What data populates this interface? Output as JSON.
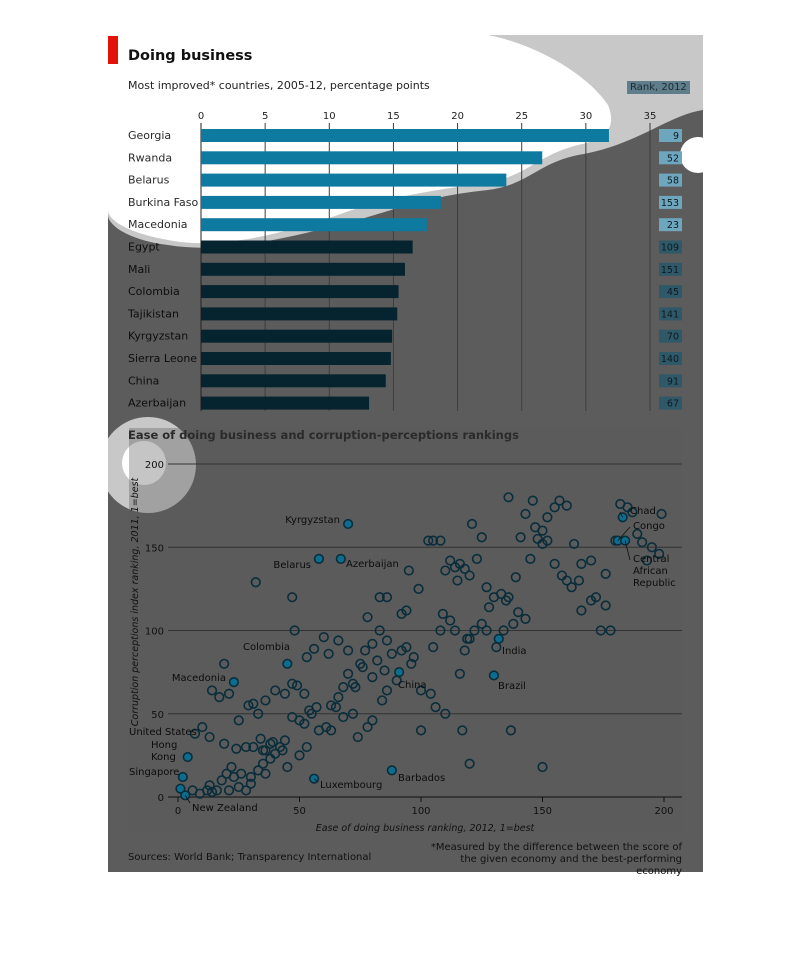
{
  "header": {
    "title": "Doing business",
    "subtitle": "Most improved* countries, 2005-12, percentage points",
    "rank_label": "Rank, 2012"
  },
  "footer": {
    "sources": "Sources: World Bank; Transparency International",
    "footnote": "*Measured by the difference between the score of the given economy and the best-performing economy"
  },
  "colors": {
    "highlight_bar": "#0f7aa0",
    "dark_bar": "#06242f",
    "overlay_dark": "#5a5a5a",
    "overlay_light": "#c6c6c6",
    "marker_stroke": "#0a2d3b",
    "marker_highlight_fill": "#0e6d8e"
  },
  "chart_data": [
    {
      "type": "bar",
      "orientation": "horizontal",
      "title": "Doing business",
      "subtitle": "Most improved* countries, 2005-12, percentage points",
      "categories": [
        "Georgia",
        "Rwanda",
        "Belarus",
        "Burkina Faso",
        "Macedonia",
        "Egypt",
        "Mali",
        "Colombia",
        "Tajikistan",
        "Kyrgyzstan",
        "Sierra Leone",
        "China",
        "Azerbaijan"
      ],
      "values": [
        31.8,
        26.6,
        23.8,
        18.7,
        17.6,
        16.5,
        15.9,
        15.4,
        15.3,
        14.9,
        14.8,
        14.4,
        13.1
      ],
      "rank_2012": [
        "9",
        "52",
        "58",
        "153",
        "23",
        "109",
        "151",
        "45",
        "141",
        "70",
        "140",
        "91",
        "67"
      ],
      "xlim": [
        0,
        35
      ],
      "xticks": [
        "0",
        "5",
        "10",
        "15",
        "20",
        "25",
        "30",
        "35"
      ],
      "grid": true
    },
    {
      "type": "scatter",
      "title": "Ease of doing business and corruption-perceptions rankings",
      "xlabel": "Ease of doing business ranking, 2012, 1=best",
      "ylabel": "Corruption perceptions index ranking, 2011, 1=best",
      "xlim": [
        0,
        205
      ],
      "ylim": [
        0,
        205
      ],
      "xticks": [
        "0",
        "50",
        "100",
        "150",
        "200"
      ],
      "yticks": [
        "0",
        "50",
        "100",
        "150",
        "200"
      ],
      "grid": true,
      "labelled_points": [
        {
          "label": "Kyrgyzstan",
          "x": 70,
          "y": 164
        },
        {
          "label": "Belarus",
          "x": 58,
          "y": 143
        },
        {
          "label": "Azerbaijan",
          "x": 67,
          "y": 143
        },
        {
          "label": "Chad",
          "x": 183,
          "y": 168
        },
        {
          "label": "Congo",
          "x": 181,
          "y": 154
        },
        {
          "label": "Central African Republic",
          "x": 184,
          "y": 154
        },
        {
          "label": "Colombia",
          "x": 45,
          "y": 80
        },
        {
          "label": "Macedonia",
          "x": 23,
          "y": 69
        },
        {
          "label": "India",
          "x": 132,
          "y": 95
        },
        {
          "label": "China",
          "x": 91,
          "y": 75
        },
        {
          "label": "Brazil",
          "x": 130,
          "y": 73
        },
        {
          "label": "United States",
          "x": 4,
          "y": 24
        },
        {
          "label": "Hong Kong",
          "x": 2,
          "y": 12
        },
        {
          "label": "Singapore",
          "x": 1,
          "y": 5
        },
        {
          "label": "New Zealand",
          "x": 3,
          "y": 1
        },
        {
          "label": "Luxembourg",
          "x": 56,
          "y": 11
        },
        {
          "label": "Barbados",
          "x": 88,
          "y": 16
        }
      ],
      "points": [
        [
          9,
          2
        ],
        [
          6,
          4
        ],
        [
          12,
          4
        ],
        [
          13,
          7
        ],
        [
          14,
          3
        ],
        [
          18,
          10
        ],
        [
          20,
          14
        ],
        [
          23,
          12
        ],
        [
          26,
          14
        ],
        [
          30,
          12
        ],
        [
          25,
          6
        ],
        [
          28,
          4
        ],
        [
          21,
          4
        ],
        [
          16,
          4
        ],
        [
          22,
          18
        ],
        [
          30,
          8
        ],
        [
          33,
          16
        ],
        [
          35,
          20
        ],
        [
          36,
          14
        ],
        [
          38,
          23
        ],
        [
          40,
          26
        ],
        [
          36,
          28
        ],
        [
          38,
          32
        ],
        [
          42,
          30
        ],
        [
          44,
          34
        ],
        [
          47,
          48
        ],
        [
          50,
          46
        ],
        [
          52,
          44
        ],
        [
          55,
          50
        ],
        [
          19,
          32
        ],
        [
          24,
          29
        ],
        [
          28,
          30
        ],
        [
          31,
          30
        ],
        [
          34,
          35
        ],
        [
          35,
          28
        ],
        [
          39,
          33
        ],
        [
          43,
          28
        ],
        [
          45,
          18
        ],
        [
          50,
          25
        ],
        [
          53,
          30
        ],
        [
          58,
          40
        ],
        [
          61,
          42
        ],
        [
          63,
          55
        ],
        [
          66,
          60
        ],
        [
          68,
          66
        ],
        [
          70,
          74
        ],
        [
          73,
          66
        ],
        [
          72,
          68
        ],
        [
          75,
          80
        ],
        [
          77,
          88
        ],
        [
          80,
          92
        ],
        [
          83,
          100
        ],
        [
          86,
          94
        ],
        [
          88,
          86
        ],
        [
          92,
          88
        ],
        [
          94,
          90
        ],
        [
          96,
          80
        ],
        [
          90,
          70
        ],
        [
          86,
          64
        ],
        [
          84,
          58
        ],
        [
          80,
          46
        ],
        [
          78,
          42
        ],
        [
          74,
          36
        ],
        [
          72,
          50
        ],
        [
          68,
          48
        ],
        [
          65,
          54
        ],
        [
          63,
          40
        ],
        [
          57,
          54
        ],
        [
          54,
          52
        ],
        [
          52,
          62
        ],
        [
          49,
          67
        ],
        [
          47,
          68
        ],
        [
          44,
          62
        ],
        [
          40,
          64
        ],
        [
          36,
          58
        ],
        [
          33,
          50
        ],
        [
          31,
          56
        ],
        [
          29,
          55
        ],
        [
          25,
          46
        ],
        [
          21,
          62
        ],
        [
          17,
          60
        ],
        [
          19,
          80
        ],
        [
          14,
          64
        ],
        [
          10,
          42
        ],
        [
          7,
          38
        ],
        [
          13,
          36
        ],
        [
          48,
          100
        ],
        [
          47,
          120
        ],
        [
          32,
          129
        ],
        [
          78,
          108
        ],
        [
          83,
          120
        ],
        [
          86,
          120
        ],
        [
          92,
          110
        ],
        [
          94,
          112
        ],
        [
          95,
          136
        ],
        [
          99,
          125
        ],
        [
          103,
          154
        ],
        [
          105,
          154
        ],
        [
          108,
          154
        ],
        [
          110,
          136
        ],
        [
          112,
          142
        ],
        [
          114,
          138
        ],
        [
          116,
          140
        ],
        [
          118,
          137
        ],
        [
          120,
          133
        ],
        [
          115,
          130
        ],
        [
          109,
          110
        ],
        [
          105,
          90
        ],
        [
          106,
          54
        ],
        [
          110,
          50
        ],
        [
          116,
          74
        ],
        [
          119,
          95
        ],
        [
          121,
          164
        ],
        [
          123,
          143
        ],
        [
          125,
          156
        ],
        [
          127,
          126
        ],
        [
          130,
          120
        ],
        [
          133,
          122
        ],
        [
          128,
          114
        ],
        [
          135,
          118
        ],
        [
          138,
          104
        ],
        [
          140,
          111
        ],
        [
          143,
          107
        ],
        [
          145,
          143
        ],
        [
          147,
          162
        ],
        [
          150,
          152
        ],
        [
          152,
          154
        ],
        [
          155,
          140
        ],
        [
          158,
          133
        ],
        [
          160,
          130
        ],
        [
          162,
          126
        ],
        [
          165,
          130
        ],
        [
          166,
          112
        ],
        [
          170,
          118
        ],
        [
          172,
          120
        ],
        [
          174,
          100
        ],
        [
          176,
          115
        ],
        [
          178,
          100
        ],
        [
          180,
          154
        ],
        [
          182,
          176
        ],
        [
          185,
          174
        ],
        [
          187,
          171
        ],
        [
          189,
          158
        ],
        [
          191,
          153
        ],
        [
          193,
          142
        ],
        [
          195,
          150
        ],
        [
          198,
          146
        ],
        [
          199,
          170
        ],
        [
          176,
          134
        ],
        [
          170,
          142
        ],
        [
          166,
          140
        ],
        [
          163,
          152
        ],
        [
          160,
          175
        ],
        [
          157,
          178
        ],
        [
          155,
          174
        ],
        [
          152,
          168
        ],
        [
          150,
          160
        ],
        [
          148,
          155
        ],
        [
          146,
          178
        ],
        [
          141,
          156
        ],
        [
          139,
          132
        ],
        [
          136,
          120
        ],
        [
          134,
          100
        ],
        [
          131,
          90
        ],
        [
          127,
          100
        ],
        [
          125,
          104
        ],
        [
          122,
          100
        ],
        [
          120,
          95
        ],
        [
          118,
          88
        ],
        [
          114,
          100
        ],
        [
          112,
          106
        ],
        [
          108,
          100
        ],
        [
          104,
          62
        ],
        [
          100,
          64
        ],
        [
          97,
          84
        ],
        [
          85,
          76
        ],
        [
          82,
          82
        ],
        [
          80,
          72
        ],
        [
          76,
          78
        ],
        [
          70,
          88
        ],
        [
          66,
          94
        ],
        [
          62,
          86
        ],
        [
          60,
          96
        ],
        [
          56,
          89
        ],
        [
          53,
          84
        ],
        [
          100,
          40
        ],
        [
          117,
          40
        ],
        [
          137,
          40
        ],
        [
          150,
          18
        ],
        [
          120,
          20
        ],
        [
          143,
          170
        ],
        [
          136,
          180
        ]
      ]
    }
  ],
  "annotations": {
    "sc_kyrgyzstan": "Kyrgyzstan",
    "sc_belarus": "Belarus",
    "sc_azerbaijan": "Azerbaijan",
    "sc_chad": "Chad",
    "sc_congo": "Congo",
    "sc_car1": "Central",
    "sc_car2": "African",
    "sc_car3": "Republic",
    "sc_colombia": "Colombia",
    "sc_macedonia": "Macedonia",
    "sc_india": "India",
    "sc_china": "China",
    "sc_brazil": "Brazil",
    "sc_us": "United States",
    "sc_hk1": "Hong",
    "sc_hk2": "Kong",
    "sc_singapore": "Singapore",
    "sc_nz": "New Zealand",
    "sc_lux": "Luxembourg",
    "sc_barbados": "Barbados"
  }
}
